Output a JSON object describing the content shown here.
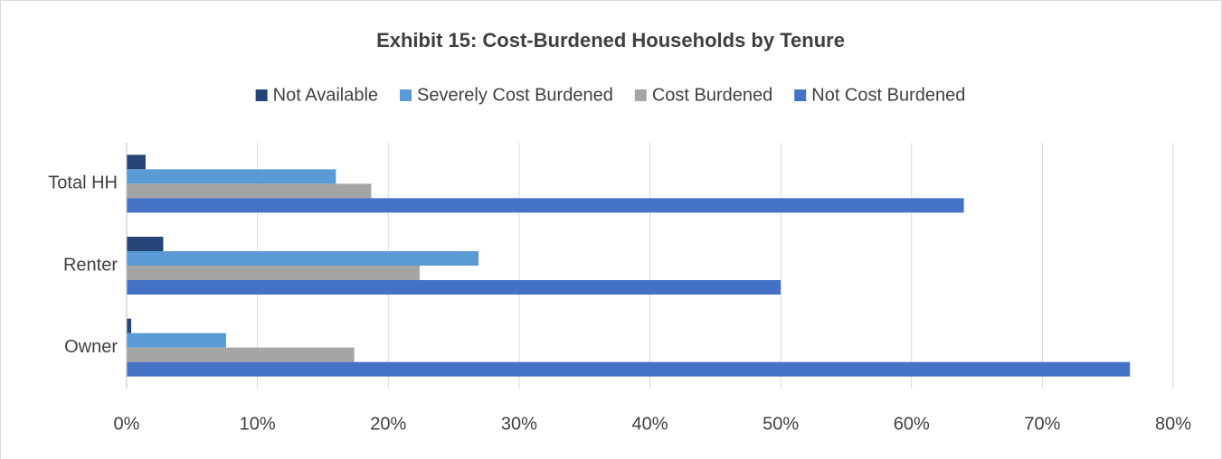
{
  "chart_data": {
    "type": "hbar",
    "title": "Exhibit 15: Cost-Burdened Households by Tenure",
    "categories": [
      "Total HH",
      "Renter",
      "Owner"
    ],
    "series": [
      {
        "name": "Not Available",
        "color": "#264478",
        "values": [
          1.45,
          2.8,
          0.35
        ]
      },
      {
        "name": "Severely Cost Burdened",
        "color": "#5b9bd5",
        "values": [
          16.0,
          26.9,
          7.6
        ]
      },
      {
        "name": "Cost Burdened",
        "color": "#a5a5a5",
        "values": [
          18.7,
          22.4,
          17.4
        ]
      },
      {
        "name": "Not Cost Burdened",
        "color": "#4472c4",
        "values": [
          64.0,
          50.0,
          76.7
        ]
      }
    ],
    "xlim": [
      0,
      80
    ],
    "xticks": [
      {
        "value": 0,
        "label": "0%"
      },
      {
        "value": 10,
        "label": "10%"
      },
      {
        "value": 20,
        "label": "20%"
      },
      {
        "value": 30,
        "label": "30%"
      },
      {
        "value": 40,
        "label": "40%"
      },
      {
        "value": 50,
        "label": "50%"
      },
      {
        "value": 60,
        "label": "60%"
      },
      {
        "value": 70,
        "label": "70%"
      },
      {
        "value": 80,
        "label": "80%"
      }
    ],
    "grid": true,
    "legend": "top"
  }
}
